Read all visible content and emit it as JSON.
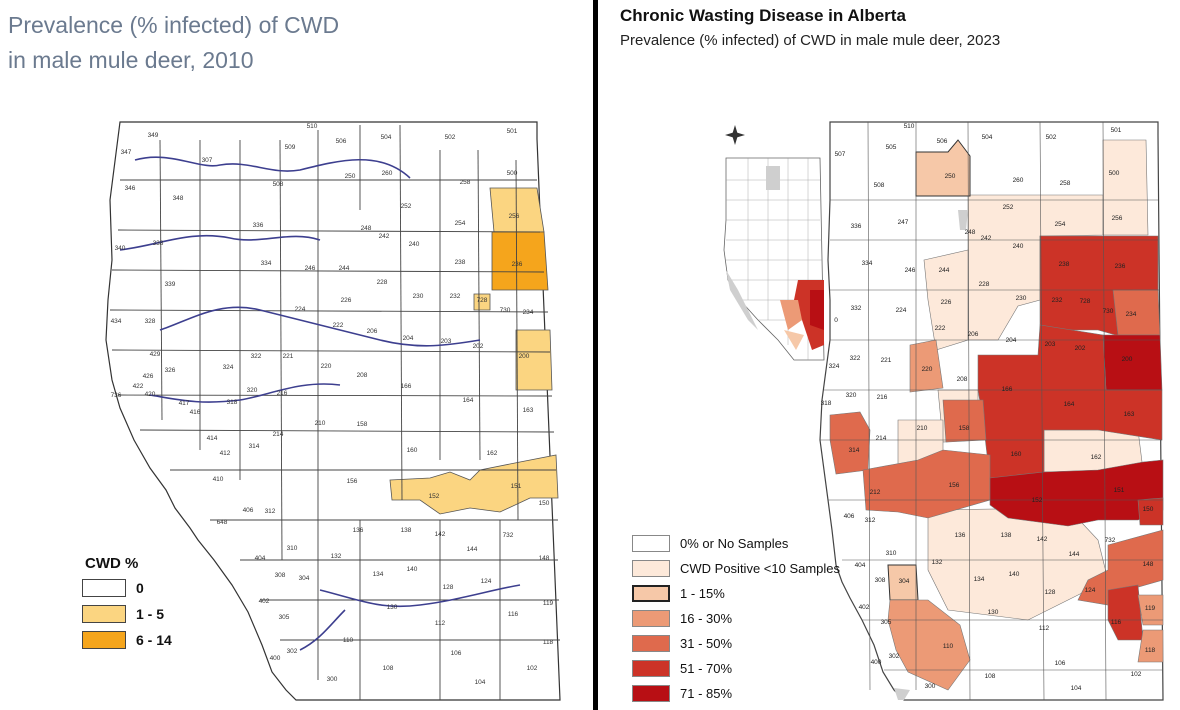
{
  "left": {
    "title_line1": "Prevalence (% infected) of CWD",
    "title_line2": "in male mule deer,  2010",
    "legend": {
      "title": "CWD %",
      "items": [
        {
          "label": "0",
          "color": "#ffffff"
        },
        {
          "label": "1 - 5",
          "color": "#fbd581"
        },
        {
          "label": "6 - 14",
          "color": "#f5a51c"
        }
      ]
    },
    "colored_wmus": [
      {
        "wmu": "256",
        "category": "1 - 5"
      },
      {
        "wmu": "236",
        "category": "6 - 14"
      },
      {
        "wmu": "200",
        "category": "1 - 5"
      },
      {
        "wmu": "152",
        "category": "1 - 5"
      },
      {
        "wmu": "151",
        "category": "1 - 5"
      },
      {
        "wmu": "728",
        "category": "1 - 5"
      }
    ],
    "wmu_labels": [
      "349",
      "347",
      "307",
      "346",
      "348",
      "340",
      "338",
      "339",
      "434",
      "328",
      "429",
      "426",
      "422",
      "736",
      "420",
      "417",
      "418",
      "416",
      "414",
      "412",
      "410",
      "406",
      "648",
      "308",
      "312",
      "510",
      "509",
      "506",
      "504",
      "502",
      "501",
      "500",
      "508",
      "250",
      "260",
      "258",
      "252",
      "254",
      "256",
      "336",
      "334",
      "246",
      "244",
      "248",
      "242",
      "240",
      "238",
      "236",
      "228",
      "230",
      "232",
      "728",
      "730",
      "234",
      "226",
      "224",
      "222",
      "206",
      "204",
      "203",
      "202",
      "200",
      "322",
      "221",
      "220",
      "324",
      "326",
      "318",
      "216",
      "214",
      "210",
      "208",
      "166",
      "164",
      "163",
      "158",
      "160",
      "162",
      "156",
      "152",
      "151",
      "150",
      "142",
      "144",
      "136",
      "138",
      "132",
      "134",
      "140",
      "128",
      "124",
      "732",
      "148",
      "310",
      "304",
      "305",
      "302",
      "300",
      "404",
      "402",
      "400",
      "130",
      "112",
      "116",
      "119",
      "118",
      "110",
      "108",
      "106",
      "104",
      "102"
    ]
  },
  "right": {
    "title": "Chronic Wasting Disease in Alberta",
    "subtitle": "Prevalence (% infected) of CWD in male mule deer, 2023",
    "legend": [
      {
        "label": "0% or No Samples",
        "color": "#ffffff"
      },
      {
        "label": "CWD Positive <10 Samples",
        "color": "#fde9da"
      },
      {
        "label": "1 - 15%",
        "color": "#f6c8a8"
      },
      {
        "label": "16 - 30%",
        "color": "#ec9a76"
      },
      {
        "label": "31 - 50%",
        "color": "#df6a4d"
      },
      {
        "label": "51 - 70%",
        "color": "#cc3327"
      },
      {
        "label": "71 - 85%",
        "color": "#b80f14"
      }
    ],
    "wmu_values": [
      {
        "wmu": "250",
        "category": "1 - 15%"
      },
      {
        "wmu": "238",
        "category": "51 - 70%"
      },
      {
        "wmu": "236",
        "category": "51 - 70%"
      },
      {
        "wmu": "232",
        "category": "51 - 70%"
      },
      {
        "wmu": "234",
        "category": "31 - 50%"
      },
      {
        "wmu": "200",
        "category": "71 - 85%"
      },
      {
        "wmu": "203",
        "category": "51 - 70%"
      },
      {
        "wmu": "202",
        "category": "51 - 70%"
      },
      {
        "wmu": "166",
        "category": "51 - 70%"
      },
      {
        "wmu": "164",
        "category": "51 - 70%"
      },
      {
        "wmu": "163",
        "category": "51 - 70%"
      },
      {
        "wmu": "160",
        "category": "51 - 70%"
      },
      {
        "wmu": "152",
        "category": "71 - 85%"
      },
      {
        "wmu": "151",
        "category": "71 - 85%"
      },
      {
        "wmu": "150",
        "category": "51 - 70%"
      },
      {
        "wmu": "158",
        "category": "31 - 50%"
      },
      {
        "wmu": "156",
        "category": "31 - 50%"
      },
      {
        "wmu": "212",
        "category": "31 - 50%"
      },
      {
        "wmu": "314",
        "category": "31 - 50%"
      },
      {
        "wmu": "220",
        "category": "16 - 30%"
      },
      {
        "wmu": "148",
        "category": "31 - 50%"
      },
      {
        "wmu": "124",
        "category": "31 - 50%"
      },
      {
        "wmu": "116",
        "category": "51 - 70%"
      },
      {
        "wmu": "119",
        "category": "16 - 30%"
      },
      {
        "wmu": "118",
        "category": "16 - 30%"
      },
      {
        "wmu": "304",
        "category": "1 - 15%"
      },
      {
        "wmu": "305",
        "category": "16 - 30%"
      },
      {
        "wmu": "302",
        "category": "16 - 30%"
      },
      {
        "wmu": "110",
        "category": "16 - 30%"
      }
    ],
    "wmu_labels": [
      "510",
      "506",
      "504",
      "502",
      "501",
      "505",
      "507",
      "508",
      "250",
      "260",
      "258",
      "500",
      "252",
      "254",
      "256",
      "336",
      "247",
      "248",
      "242",
      "240",
      "238",
      "236",
      "334",
      "246",
      "244",
      "228",
      "230",
      "232",
      "728",
      "730",
      "234",
      "332",
      "224",
      "226",
      "222",
      "206",
      "204",
      "203",
      "202",
      "200",
      "324",
      "322",
      "221",
      "220",
      "208",
      "166",
      "164",
      "163",
      "318",
      "320",
      "216",
      "210",
      "158",
      "314",
      "214",
      "160",
      "162",
      "212",
      "156",
      "152",
      "151",
      "150",
      "406",
      "312",
      "136",
      "138",
      "142",
      "144",
      "732",
      "310",
      "404",
      "132",
      "134",
      "140",
      "148",
      "308",
      "304",
      "130",
      "128",
      "124",
      "402",
      "305",
      "112",
      "116",
      "119",
      "118",
      "400",
      "302",
      "110",
      "106",
      "108",
      "300",
      "104",
      "102",
      "0"
    ]
  }
}
